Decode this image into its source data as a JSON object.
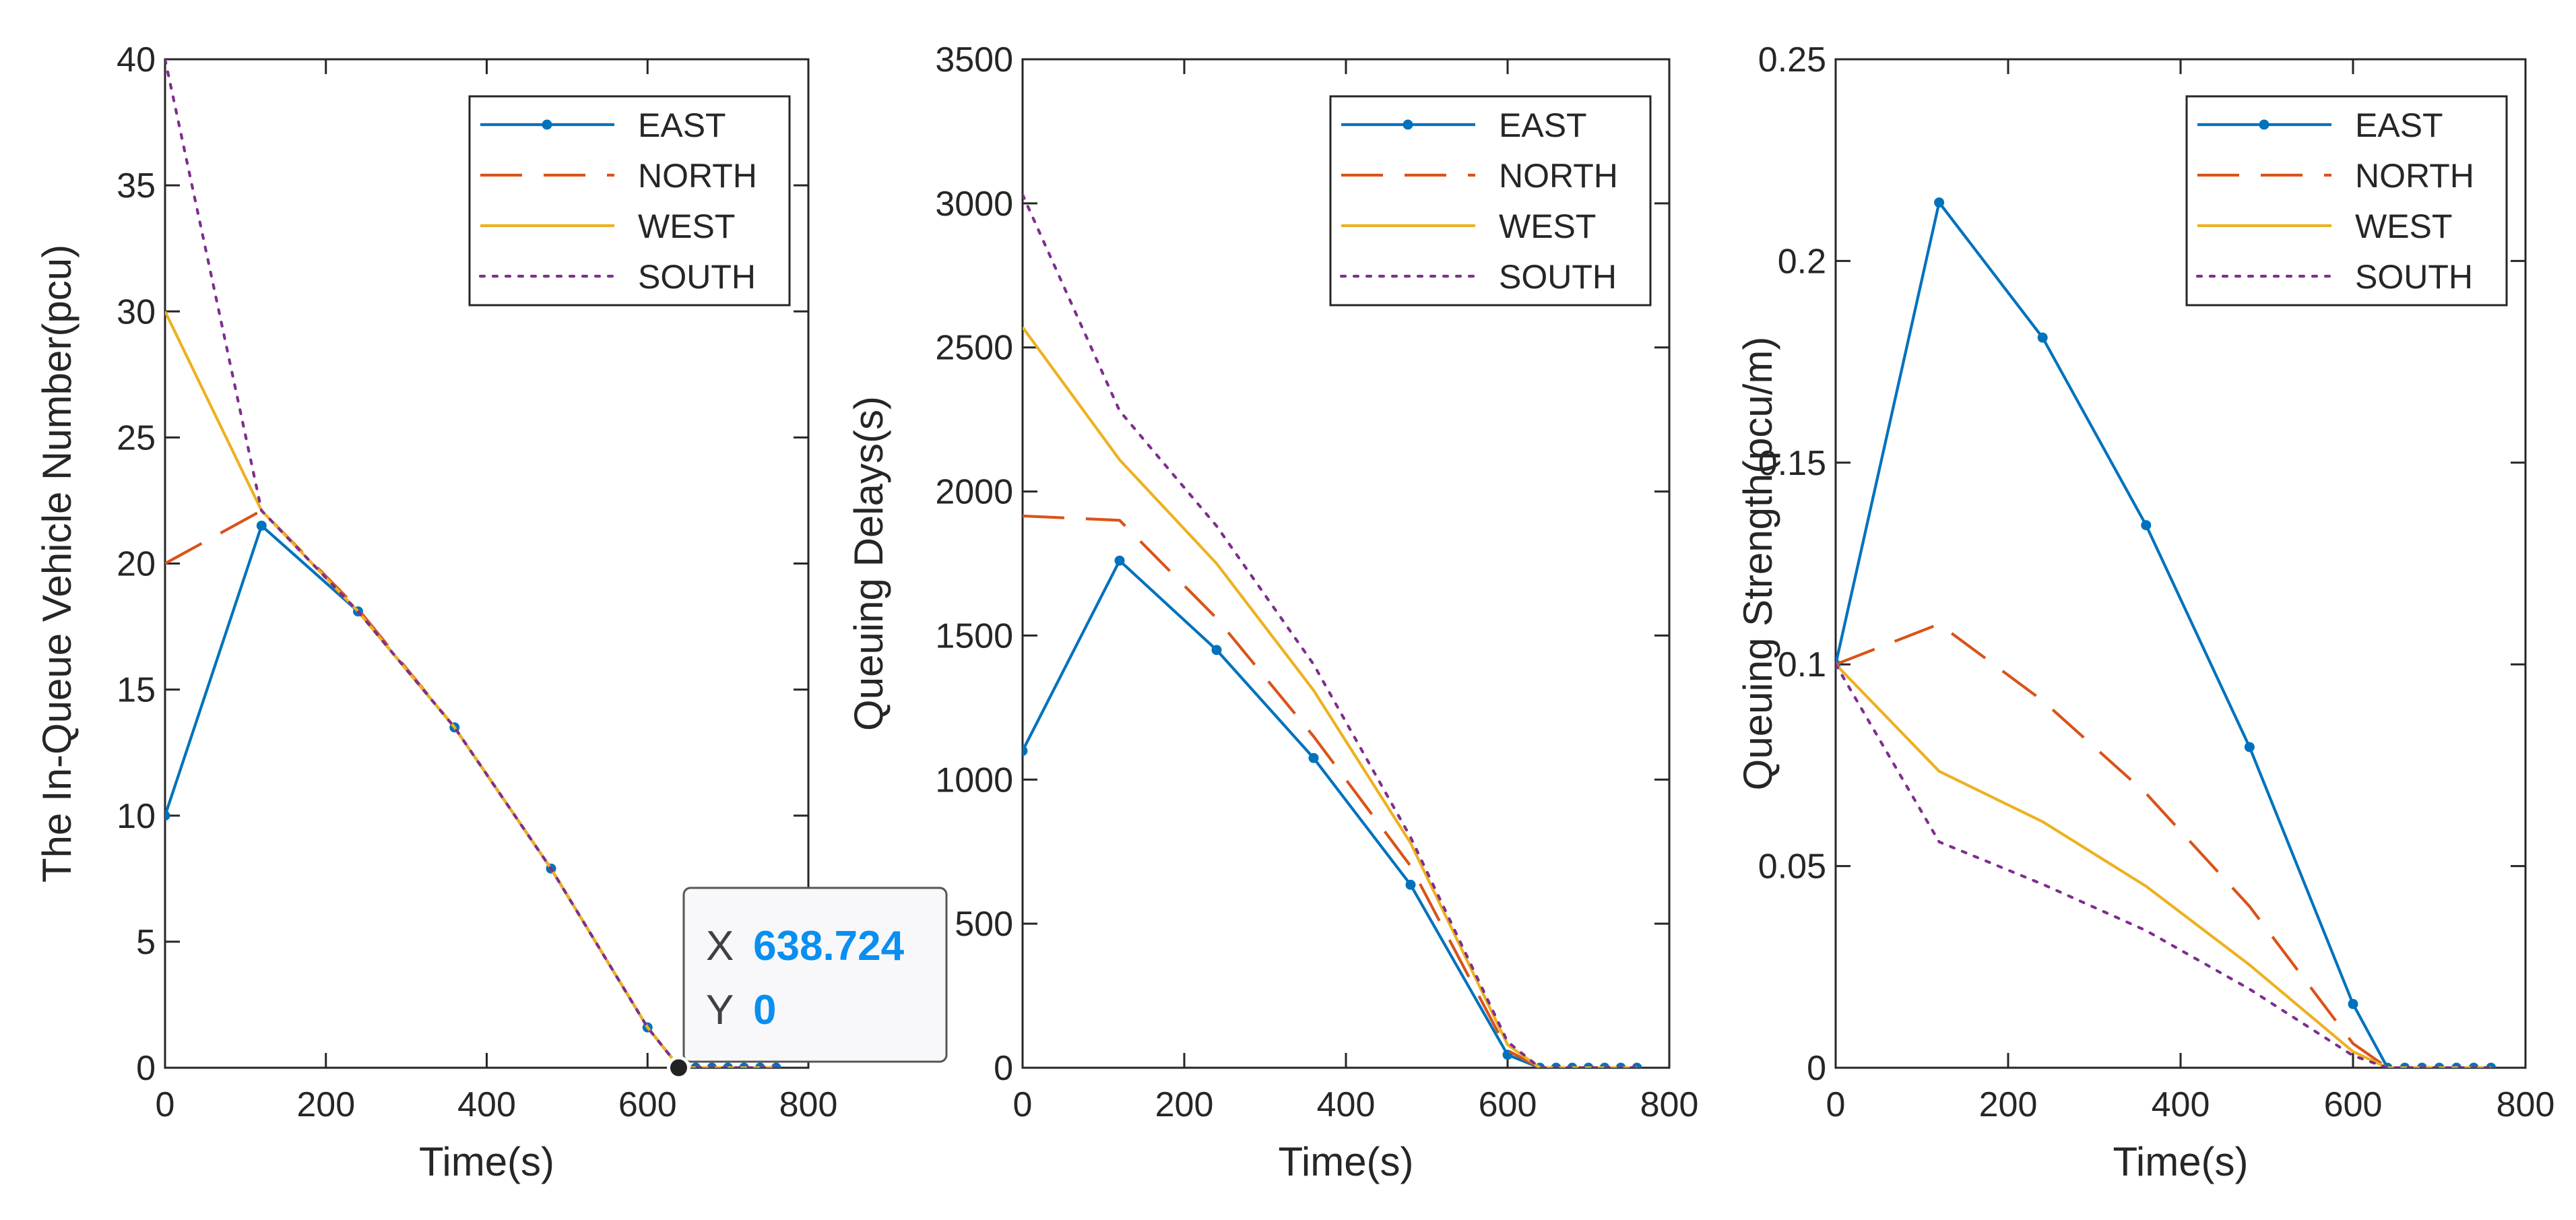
{
  "figure": {
    "background": "#ffffff",
    "axis_color": "#262626"
  },
  "chart_data": [
    {
      "type": "line",
      "title": "",
      "xlabel": "Time(s)",
      "ylabel": "The In-Queue Vehicle Number(pcu)",
      "xlim": [
        0,
        800
      ],
      "ylim": [
        0,
        40
      ],
      "xticks": [
        0,
        200,
        400,
        600,
        800
      ],
      "yticks": [
        0,
        5,
        10,
        15,
        20,
        25,
        30,
        35,
        40
      ],
      "tick_labels_x": [
        "0",
        "200",
        "400",
        "600",
        "800"
      ],
      "tick_labels_y": [
        "0",
        "5",
        "10",
        "15",
        "20",
        "25",
        "30",
        "35",
        "40"
      ],
      "x": [
        0,
        120,
        240,
        360,
        480,
        600,
        640,
        660,
        680,
        700,
        720,
        740,
        760
      ],
      "legend": {
        "location": "top-right",
        "entries": [
          "EAST",
          "NORTH",
          "WEST",
          "SOUTH"
        ]
      },
      "series": [
        {
          "name": "EAST",
          "color": "#0072BD",
          "style": "solid-dot",
          "values": [
            10,
            21.5,
            18.1,
            13.5,
            7.9,
            1.6,
            0,
            0,
            0,
            0,
            0,
            0,
            0
          ]
        },
        {
          "name": "NORTH",
          "color": "#D95319",
          "style": "dashed",
          "values": [
            20,
            22.1,
            18.2,
            13.5,
            7.9,
            1.6,
            0,
            0,
            0,
            0,
            0,
            0,
            0
          ]
        },
        {
          "name": "WEST",
          "color": "#EDB120",
          "style": "solid",
          "values": [
            30,
            22.1,
            18.1,
            13.5,
            7.9,
            1.6,
            0,
            0,
            0,
            0,
            0,
            0,
            0
          ]
        },
        {
          "name": "SOUTH",
          "color": "#7E2F8E",
          "style": "dotted",
          "values": [
            40,
            22.1,
            18.1,
            13.5,
            7.9,
            1.6,
            0,
            0,
            0,
            0,
            0,
            0,
            0
          ]
        }
      ],
      "datatip": {
        "x_label": "X",
        "x_value": "638.724",
        "y_label": "Y",
        "y_value": "0",
        "x": 638.724,
        "y": 0
      }
    },
    {
      "type": "line",
      "title": "",
      "xlabel": "Time(s)",
      "ylabel": "Queuing Delays(s)",
      "xlim": [
        0,
        800
      ],
      "ylim": [
        0,
        3500
      ],
      "xticks": [
        0,
        200,
        400,
        600,
        800
      ],
      "yticks": [
        0,
        500,
        1000,
        1500,
        2000,
        2500,
        3000,
        3500
      ],
      "tick_labels_x": [
        "0",
        "200",
        "400",
        "600",
        "800"
      ],
      "tick_labels_y": [
        "0",
        "500",
        "1000",
        "1500",
        "2000",
        "2500",
        "3000",
        "3500"
      ],
      "x": [
        0,
        120,
        240,
        360,
        480,
        600,
        640,
        660,
        680,
        700,
        720,
        740,
        760
      ],
      "legend": {
        "location": "top-right",
        "entries": [
          "EAST",
          "NORTH",
          "WEST",
          "SOUTH"
        ]
      },
      "series": [
        {
          "name": "EAST",
          "color": "#0072BD",
          "style": "solid-dot",
          "values": [
            1100,
            1760,
            1450,
            1075,
            635,
            45,
            0,
            0,
            0,
            0,
            0,
            0,
            0
          ]
        },
        {
          "name": "NORTH",
          "color": "#D95319",
          "style": "dashed",
          "values": [
            1915,
            1900,
            1560,
            1150,
            700,
            60,
            0,
            0,
            0,
            0,
            0,
            0,
            0
          ]
        },
        {
          "name": "WEST",
          "color": "#EDB120",
          "style": "solid",
          "values": [
            2570,
            2110,
            1750,
            1310,
            780,
            80,
            0,
            0,
            0,
            0,
            0,
            0,
            0
          ]
        },
        {
          "name": "SOUTH",
          "color": "#7E2F8E",
          "style": "dotted",
          "values": [
            3030,
            2280,
            1880,
            1400,
            800,
            90,
            0,
            0,
            0,
            0,
            0,
            0,
            0
          ]
        }
      ]
    },
    {
      "type": "line",
      "title": "",
      "xlabel": "Time(s)",
      "ylabel": "Queuing Strength(pcu/m)",
      "xlim": [
        0,
        800
      ],
      "ylim": [
        0,
        0.25
      ],
      "xticks": [
        0,
        200,
        400,
        600,
        800
      ],
      "yticks": [
        0,
        0.05,
        0.1,
        0.15,
        0.2,
        0.25
      ],
      "tick_labels_x": [
        "0",
        "200",
        "400",
        "600",
        "800"
      ],
      "tick_labels_y": [
        "0",
        "0.05",
        "0.1",
        "0.15",
        "0.2",
        "0.25"
      ],
      "x": [
        0,
        120,
        240,
        360,
        480,
        600,
        640,
        660,
        680,
        700,
        720,
        740,
        760
      ],
      "legend": {
        "location": "top-right",
        "entries": [
          "EAST",
          "NORTH",
          "WEST",
          "SOUTH"
        ]
      },
      "series": [
        {
          "name": "EAST",
          "color": "#0072BD",
          "style": "solid-dot",
          "values": [
            0.1,
            0.2145,
            0.181,
            0.1345,
            0.0795,
            0.0158,
            0,
            0,
            0,
            0,
            0,
            0,
            0
          ]
        },
        {
          "name": "NORTH",
          "color": "#D95319",
          "style": "dashed",
          "values": [
            0.1,
            0.11,
            0.091,
            0.068,
            0.04,
            0.006,
            0,
            0,
            0,
            0,
            0,
            0,
            0
          ]
        },
        {
          "name": "WEST",
          "color": "#EDB120",
          "style": "solid",
          "values": [
            0.1,
            0.0735,
            0.061,
            0.045,
            0.0255,
            0.004,
            0,
            0,
            0,
            0,
            0,
            0,
            0
          ]
        },
        {
          "name": "SOUTH",
          "color": "#7E2F8E",
          "style": "dotted",
          "values": [
            0.1,
            0.056,
            0.0455,
            0.034,
            0.0195,
            0.003,
            0,
            0,
            0,
            0,
            0,
            0,
            0
          ]
        }
      ]
    }
  ]
}
